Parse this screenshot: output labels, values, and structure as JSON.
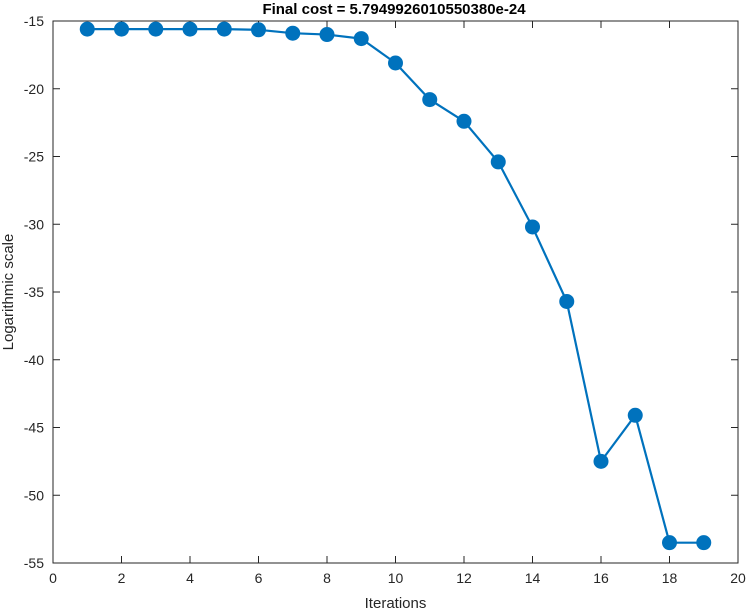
{
  "chart_data": {
    "type": "line",
    "title": "Final cost = 5.7949926010550380e-24",
    "xlabel": "Iterations",
    "ylabel": "Logarithmic scale",
    "xlim": [
      0,
      20
    ],
    "ylim": [
      -55,
      -15
    ],
    "xticks": [
      0,
      2,
      4,
      6,
      8,
      10,
      12,
      14,
      16,
      18,
      20
    ],
    "yticks": [
      -15,
      -20,
      -25,
      -30,
      -35,
      -40,
      -45,
      -50,
      -55
    ],
    "grid": false,
    "legend": "none",
    "series": [
      {
        "color": "#0072BD",
        "marker": "filled-circle",
        "x": [
          1,
          2,
          3,
          4,
          5,
          6,
          7,
          8,
          9,
          10,
          11,
          12,
          13,
          14,
          15,
          16,
          17,
          18,
          19
        ],
        "y": [
          -15.6,
          -15.6,
          -15.6,
          -15.6,
          -15.6,
          -15.65,
          -15.9,
          -16.0,
          -16.3,
          -18.1,
          -20.8,
          -22.4,
          -25.4,
          -30.2,
          -35.7,
          -47.5,
          -44.1,
          -53.5,
          -53.5
        ]
      }
    ]
  }
}
